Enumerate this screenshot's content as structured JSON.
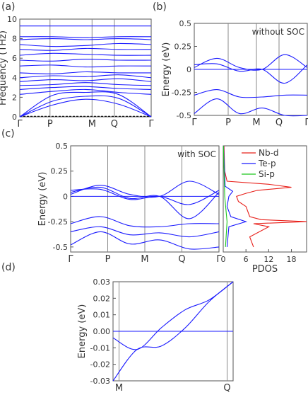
{
  "colors": {
    "band": "#1a1aff",
    "nb": "#e8201a",
    "te": "#1a1aff",
    "si": "#1ec81e",
    "axis": "#555555",
    "guide": "#888888"
  },
  "chart_data": [
    {
      "id": "a",
      "panel_label": "(a)",
      "type": "line",
      "ylabel": "Frequency (THz)",
      "ylim": [
        0,
        10
      ],
      "yticks": [
        "0",
        "2",
        "4",
        "6",
        "8",
        "10"
      ],
      "kpath": [
        "Γ",
        "P",
        "M",
        "Q",
        "Γ"
      ],
      "kpos": [
        0,
        0.23,
        0.55,
        0.72,
        1.0
      ],
      "dashed_level": 0.05,
      "series": [
        {
          "values": [
            0,
            1.2,
            1.8,
            1.3,
            0
          ]
        },
        {
          "values": [
            0,
            1.6,
            2.1,
            1.9,
            0
          ]
        },
        {
          "values": [
            0,
            2.2,
            2.5,
            2.3,
            0
          ]
        },
        {
          "values": [
            2.3,
            2.6,
            2.8,
            2.5,
            2.3
          ]
        },
        {
          "values": [
            2.8,
            3.0,
            3.1,
            2.9,
            2.8
          ]
        },
        {
          "values": [
            3.2,
            3.3,
            3.5,
            3.3,
            3.2
          ]
        },
        {
          "values": [
            3.6,
            3.8,
            3.7,
            3.9,
            3.6
          ]
        },
        {
          "values": [
            4.0,
            4.2,
            4.1,
            4.3,
            4.0
          ]
        },
        {
          "values": [
            4.5,
            4.4,
            4.6,
            4.5,
            4.5
          ]
        },
        {
          "values": [
            5.2,
            5.3,
            5.1,
            5.2,
            5.2
          ]
        },
        {
          "values": [
            5.8,
            5.7,
            5.9,
            5.8,
            5.8
          ]
        },
        {
          "values": [
            6.3,
            6.5,
            6.4,
            6.3,
            6.3
          ]
        },
        {
          "values": [
            6.9,
            6.8,
            7.0,
            6.9,
            6.9
          ]
        },
        {
          "values": [
            7.4,
            7.2,
            7.3,
            7.5,
            7.4
          ]
        },
        {
          "values": [
            7.9,
            8.0,
            7.9,
            8.0,
            7.9
          ]
        },
        {
          "values": [
            8.2,
            8.2,
            8.1,
            8.2,
            8.2
          ]
        },
        {
          "values": [
            9.3,
            9.3,
            9.3,
            9.3,
            9.3
          ]
        }
      ]
    },
    {
      "id": "b",
      "panel_label": "(b)",
      "type": "line",
      "ylabel": "Energy (eV)",
      "ylim": [
        -0.5,
        0.5
      ],
      "yticks": [
        "-0.5",
        "-0.25",
        "0",
        "0.25",
        "0.5"
      ],
      "kpath": [
        "Γ",
        "P",
        "M",
        "Q",
        "Γ"
      ],
      "kpos": [
        0,
        0.3,
        0.55,
        0.75,
        1.0
      ],
      "fermi": 0,
      "annotation": "without SOC",
      "series": [
        {
          "values": [
            0.02,
            0.12,
            0.02,
            0.0,
            0.16,
            0.02
          ]
        },
        {
          "values": [
            0.05,
            0.06,
            -0.02,
            0.0,
            -0.15,
            0.05
          ]
        },
        {
          "values": [
            -0.28,
            -0.22,
            -0.3,
            -0.3,
            -0.28,
            -0.28
          ]
        },
        {
          "values": [
            -0.48,
            -0.32,
            -0.48,
            -0.42,
            -0.5,
            -0.5
          ]
        }
      ]
    },
    {
      "id": "c",
      "panel_label": "(c)",
      "type": "line",
      "ylabel": "Energy (eV)",
      "ylim": [
        -0.55,
        0.5
      ],
      "yticks": [
        "-0.5",
        "-0.25",
        "0",
        "0.25",
        "0.5"
      ],
      "kpath": [
        "Γ",
        "P",
        "M",
        "Q",
        "Γ"
      ],
      "kpos": [
        0,
        0.25,
        0.5,
        0.75,
        1.0
      ],
      "fermi": 0,
      "annotation": "with SOC",
      "series": [
        {
          "values": [
            0.02,
            0.11,
            0.02,
            0.0,
            0.15,
            0.02
          ]
        },
        {
          "values": [
            0.04,
            0.09,
            -0.02,
            0.0,
            -0.22,
            0.04
          ]
        },
        {
          "values": [
            0.06,
            0.07,
            -0.03,
            0.0,
            -0.08,
            0.06
          ]
        },
        {
          "values": [
            -0.27,
            -0.2,
            -0.29,
            -0.3,
            -0.27,
            -0.27
          ]
        },
        {
          "values": [
            -0.35,
            -0.3,
            -0.38,
            -0.36,
            -0.4,
            -0.35
          ]
        },
        {
          "values": [
            -0.48,
            -0.35,
            -0.47,
            -0.43,
            -0.52,
            -0.5
          ]
        }
      ]
    },
    {
      "id": "pdos",
      "type": "line",
      "xlabel": "PDOS",
      "xticks": [
        "0",
        "6",
        "12",
        "18"
      ],
      "legend": [
        "Nb-d",
        "Te-p",
        "Si-p"
      ],
      "xlim": [
        0,
        22
      ],
      "ylim": [
        -0.55,
        0.5
      ],
      "series": [
        {
          "name": "Nb-d",
          "y": [
            0.5,
            0.25,
            0.15,
            0.12,
            0.09,
            0.06,
            0.03,
            0.0,
            -0.05,
            -0.1,
            -0.2,
            -0.23,
            -0.25,
            -0.27,
            -0.3,
            -0.4,
            -0.5
          ],
          "x": [
            0.2,
            0.4,
            1.0,
            12.0,
            18.0,
            9.0,
            6.0,
            3.5,
            4.0,
            6.0,
            7.0,
            10.0,
            22.0,
            8.0,
            12.0,
            7.0,
            8.0
          ]
        },
        {
          "name": "Te-p",
          "y": [
            0.5,
            0.1,
            0.05,
            0.0,
            -0.1,
            -0.2,
            -0.25,
            -0.3,
            -0.5
          ],
          "x": [
            0.1,
            0.5,
            2.5,
            1.5,
            1.0,
            2.0,
            6.0,
            1.5,
            1.0
          ]
        },
        {
          "name": "Si-p",
          "y": [
            0.5,
            0.0,
            -0.25,
            -0.5
          ],
          "x": [
            0.05,
            0.4,
            1.0,
            0.6
          ]
        }
      ]
    },
    {
      "id": "d",
      "panel_label": "(d)",
      "type": "line",
      "ylabel": "Energy (eV)",
      "ylim": [
        -0.03,
        0.03
      ],
      "yticks": [
        "-0.03",
        "-0.02",
        "-0.01",
        "0.00",
        "0.01",
        "0.02",
        "0.03"
      ],
      "kpath": [
        "M",
        "Q"
      ],
      "kpos": [
        0.05,
        0.95
      ],
      "fermi": 0,
      "series": [
        {
          "values": [
            -0.004,
            -0.011,
            0.002,
            0.013,
            0.019,
            0.03
          ]
        },
        {
          "values": [
            -0.03,
            -0.011,
            -0.009,
            0.002,
            0.018,
            0.03
          ]
        }
      ]
    }
  ]
}
